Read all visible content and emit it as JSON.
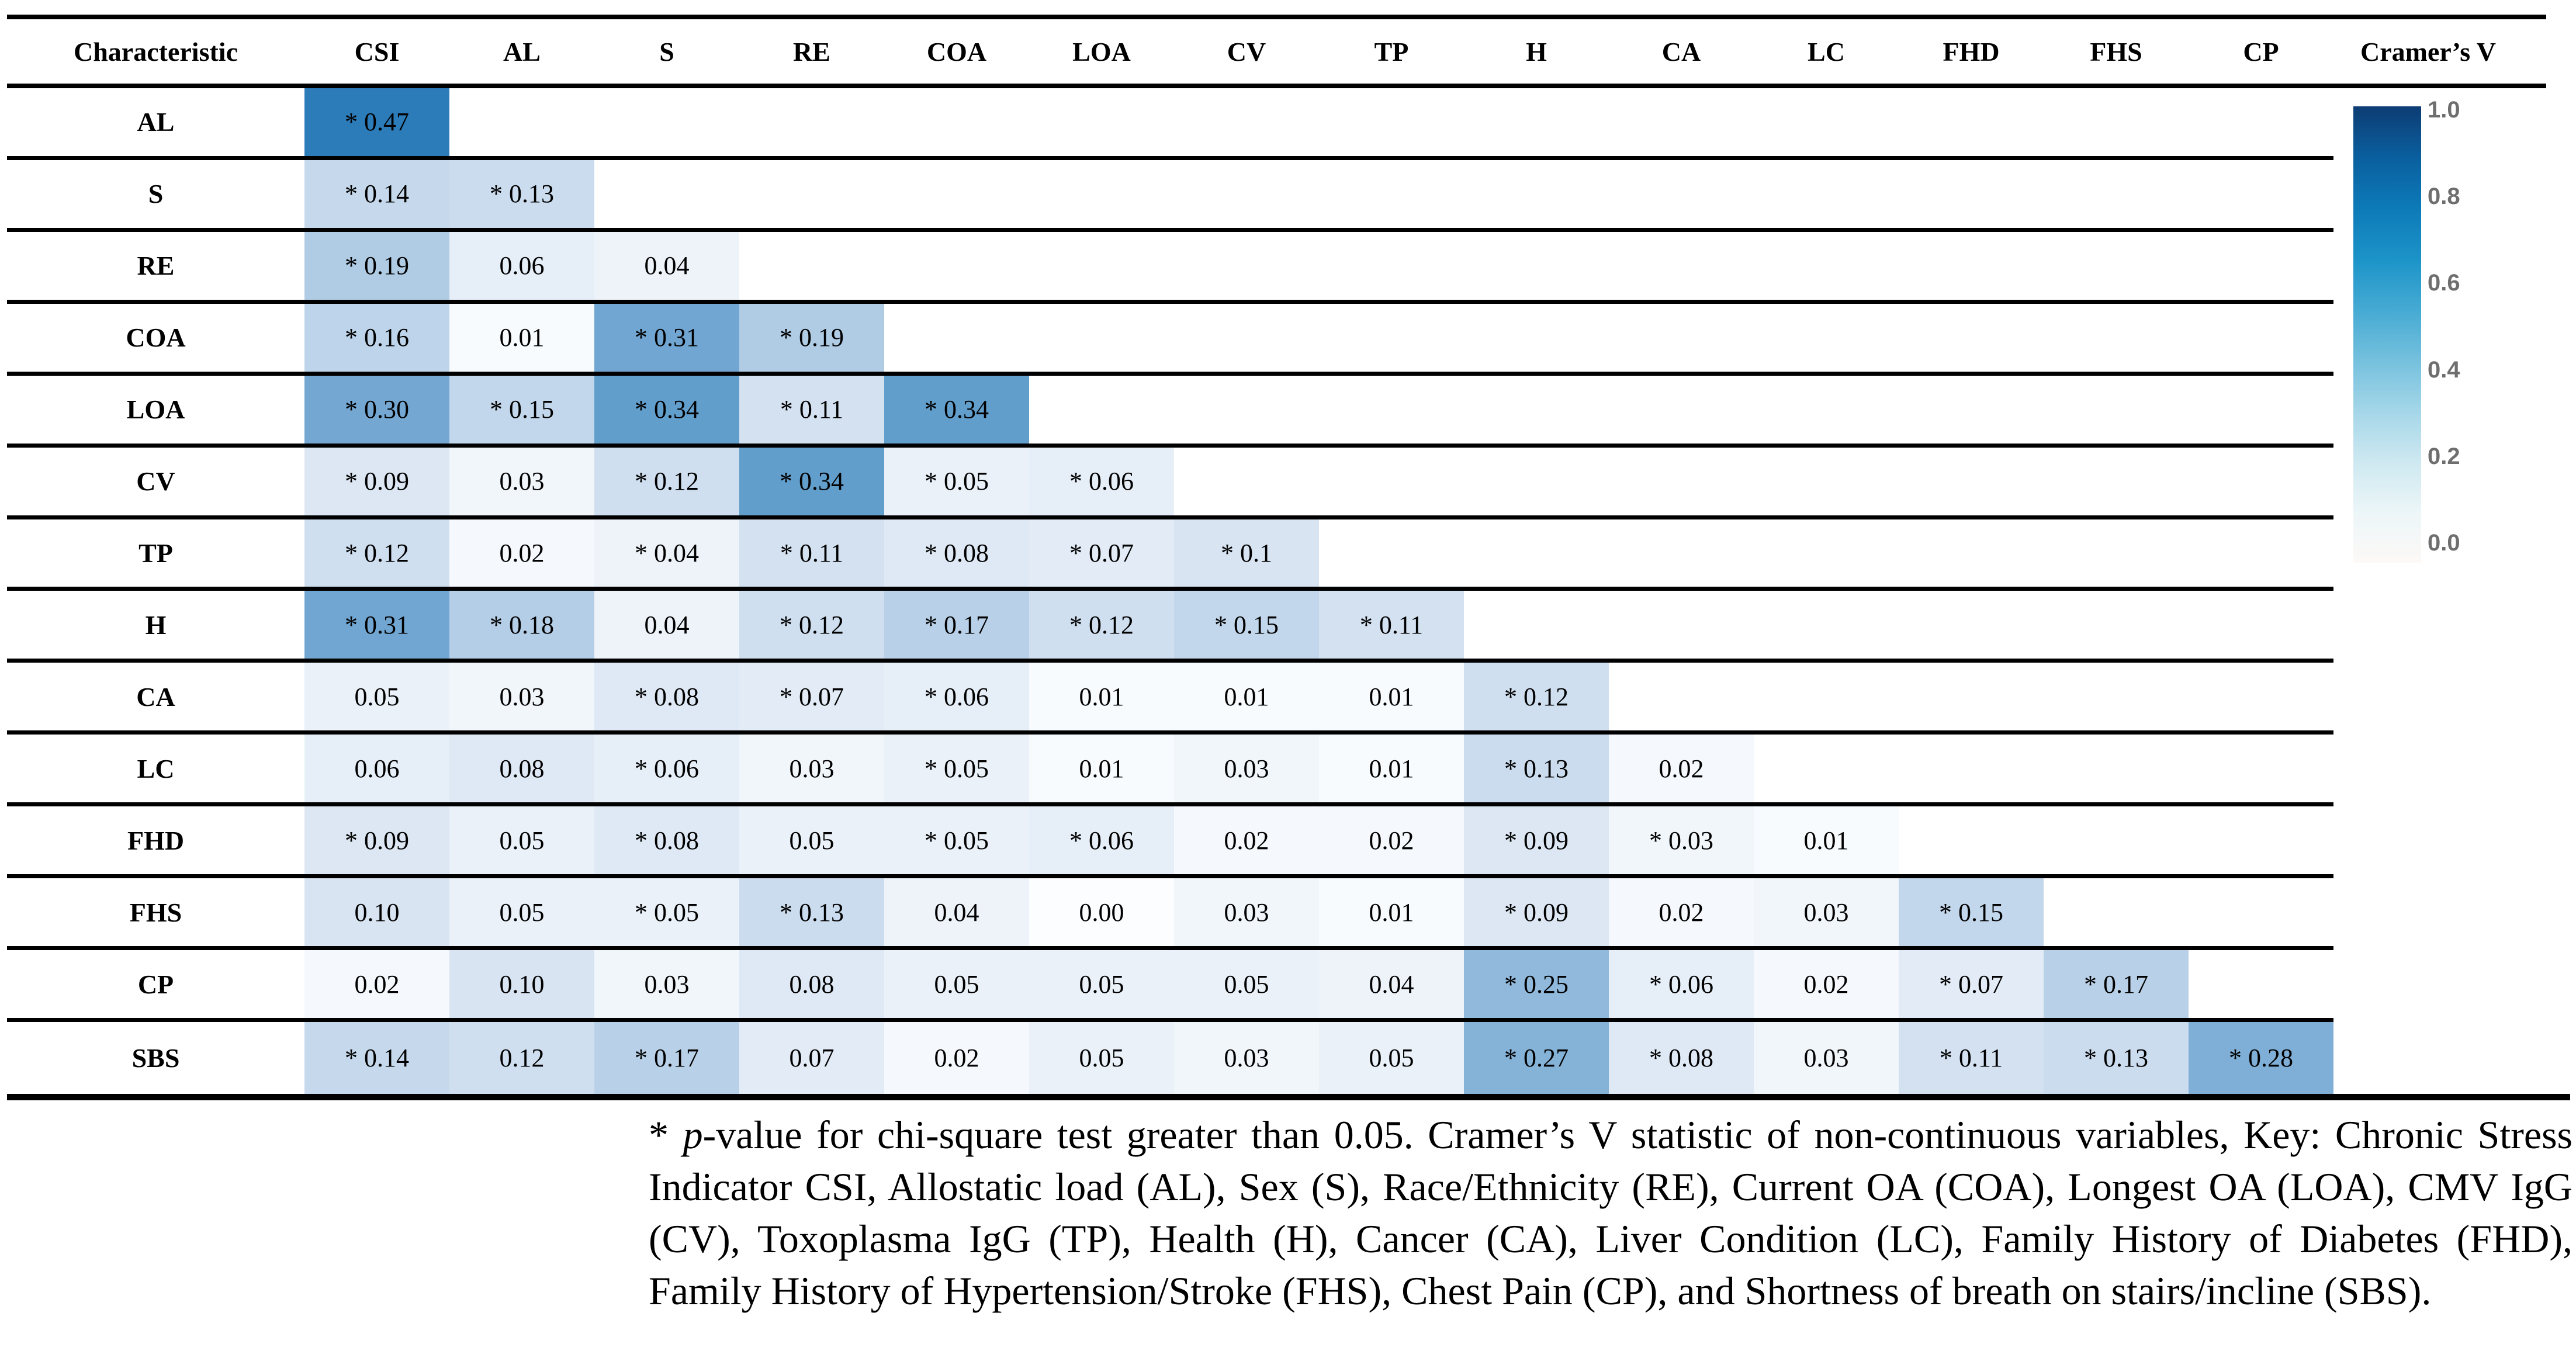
{
  "table": {
    "header_first": "Characteristic",
    "columns": [
      "CSI",
      "AL",
      "S",
      "RE",
      "COA",
      "LOA",
      "CV",
      "TP",
      "H",
      "CA",
      "LC",
      "FHD",
      "FHS",
      "CP"
    ],
    "rows": [
      {
        "label": "AL",
        "values": [
          "* 0.47"
        ]
      },
      {
        "label": "S",
        "values": [
          "* 0.14",
          "* 0.13"
        ]
      },
      {
        "label": "RE",
        "values": [
          "* 0.19",
          "0.06",
          "0.04"
        ]
      },
      {
        "label": "COA",
        "values": [
          "* 0.16",
          "0.01",
          "* 0.31",
          "* 0.19"
        ]
      },
      {
        "label": "LOA",
        "values": [
          "* 0.30",
          "* 0.15",
          "* 0.34",
          "* 0.11",
          "* 0.34"
        ]
      },
      {
        "label": "CV",
        "values": [
          "* 0.09",
          "0.03",
          "* 0.12",
          "* 0.34",
          "* 0.05",
          "* 0.06"
        ]
      },
      {
        "label": "TP",
        "values": [
          "* 0.12",
          "0.02",
          "* 0.04",
          "* 0.11",
          "* 0.08",
          "* 0.07",
          "* 0.1"
        ]
      },
      {
        "label": "H",
        "values": [
          "* 0.31",
          "* 0.18",
          "0.04",
          "* 0.12",
          "* 0.17",
          "* 0.12",
          "* 0.15",
          "* 0.11"
        ]
      },
      {
        "label": "CA",
        "values": [
          "0.05",
          "0.03",
          "* 0.08",
          "* 0.07",
          "* 0.06",
          "0.01",
          "0.01",
          "0.01",
          "* 0.12"
        ]
      },
      {
        "label": "LC",
        "values": [
          "0.06",
          "0.08",
          "* 0.06",
          "0.03",
          "* 0.05",
          "0.01",
          "0.03",
          "0.01",
          "* 0.13",
          "0.02"
        ]
      },
      {
        "label": "FHD",
        "values": [
          "* 0.09",
          "0.05",
          "* 0.08",
          "0.05",
          "* 0.05",
          "* 0.06",
          "0.02",
          "0.02",
          "* 0.09",
          "* 0.03",
          "0.01"
        ]
      },
      {
        "label": "FHS",
        "values": [
          "0.10",
          "0.05",
          "* 0.05",
          "* 0.13",
          "0.04",
          "0.00",
          "0.03",
          "0.01",
          "* 0.09",
          "0.02",
          "0.03",
          "* 0.15"
        ]
      },
      {
        "label": "CP",
        "values": [
          "0.02",
          "0.10",
          "0.03",
          "0.08",
          "0.05",
          "0.05",
          "0.05",
          "0.04",
          "* 0.25",
          "* 0.06",
          "0.02",
          "* 0.07",
          "* 0.17"
        ]
      },
      {
        "label": "SBS",
        "values": [
          "* 0.14",
          "0.12",
          "* 0.17",
          "0.07",
          "0.02",
          "0.05",
          "0.03",
          "0.05",
          "* 0.27",
          "* 0.08",
          "0.03",
          "* 0.11",
          "* 0.13",
          "* 0.28"
        ]
      }
    ]
  },
  "legend": {
    "title": "Cramer’s V",
    "ticks": [
      "1.0",
      "0.8",
      "0.6",
      "0.4",
      "0.2",
      "0.0"
    ],
    "tick_color": "#6e6e6e",
    "gradient_top_to_bottom": [
      "#0d3c74",
      "#0a5f9e",
      "#0d7ab8",
      "#1b93c8",
      "#45aad3",
      "#74c0dd",
      "#a4d6e8",
      "#cde8f1",
      "#ecf6f8",
      "#fdf9f7"
    ]
  },
  "heatmap": {
    "scale_stops": {
      "values": [
        0,
        0.1,
        0.2,
        0.3,
        0.4,
        0.5
      ],
      "colors": [
        "#fcfdff",
        "#d8e4f2",
        "#abc9e4",
        "#74a8d2",
        "#4890c4",
        "#2273b5"
      ]
    }
  },
  "caption": {
    "star": "* ",
    "p": "p",
    "rest": "-value for chi-square test greater than 0.05. Cramer’s V statistic of non-continuous variables, Key: Chronic Stress Indicator CSI, Allostatic load (AL), Sex (S), Race/Ethnicity (RE), Current OA (COA), Longest OA (LOA), CMV IgG (CV), Toxoplasma IgG (TP), Health (H), Cancer (CA), Liver Condition (LC), Family History of Diabetes (FHD), Family History of Hypertension/Stroke (FHS), Chest Pain (CP), and Shortness of breath on stairs/incline (SBS)."
  },
  "chart_data": {
    "type": "heatmap",
    "title": "Cramer’s V statistic of non-continuous variables",
    "legend_label": "Cramer’s V",
    "colorbar_range": [
      0.0,
      1.0
    ],
    "colorbar_ticks": [
      1.0,
      0.8,
      0.6,
      0.4,
      0.2,
      0.0
    ],
    "columns": [
      "CSI",
      "AL",
      "S",
      "RE",
      "COA",
      "LOA",
      "CV",
      "TP",
      "H",
      "CA",
      "LC",
      "FHD",
      "FHS",
      "CP"
    ],
    "rows": [
      "AL",
      "S",
      "RE",
      "COA",
      "LOA",
      "CV",
      "TP",
      "H",
      "CA",
      "LC",
      "FHD",
      "FHS",
      "CP",
      "SBS"
    ],
    "values": [
      [
        0.47
      ],
      [
        0.14,
        0.13
      ],
      [
        0.19,
        0.06,
        0.04
      ],
      [
        0.16,
        0.01,
        0.31,
        0.19
      ],
      [
        0.3,
        0.15,
        0.34,
        0.11,
        0.34
      ],
      [
        0.09,
        0.03,
        0.12,
        0.34,
        0.05,
        0.06
      ],
      [
        0.12,
        0.02,
        0.04,
        0.11,
        0.08,
        0.07,
        0.1
      ],
      [
        0.31,
        0.18,
        0.04,
        0.12,
        0.17,
        0.12,
        0.15,
        0.11
      ],
      [
        0.05,
        0.03,
        0.08,
        0.07,
        0.06,
        0.01,
        0.01,
        0.01,
        0.12
      ],
      [
        0.06,
        0.08,
        0.06,
        0.03,
        0.05,
        0.01,
        0.03,
        0.01,
        0.13,
        0.02
      ],
      [
        0.09,
        0.05,
        0.08,
        0.05,
        0.05,
        0.06,
        0.02,
        0.02,
        0.09,
        0.03,
        0.01
      ],
      [
        0.1,
        0.05,
        0.05,
        0.13,
        0.04,
        0.0,
        0.03,
        0.01,
        0.09,
        0.02,
        0.03,
        0.15
      ],
      [
        0.02,
        0.1,
        0.03,
        0.08,
        0.05,
        0.05,
        0.05,
        0.04,
        0.25,
        0.06,
        0.02,
        0.07,
        0.17
      ],
      [
        0.14,
        0.12,
        0.17,
        0.07,
        0.02,
        0.05,
        0.03,
        0.05,
        0.27,
        0.08,
        0.03,
        0.11,
        0.13,
        0.28
      ]
    ],
    "starred": [
      [
        true
      ],
      [
        true,
        true
      ],
      [
        true,
        false,
        false
      ],
      [
        true,
        false,
        true,
        true
      ],
      [
        true,
        true,
        true,
        true,
        true
      ],
      [
        true,
        false,
        true,
        true,
        true,
        true
      ],
      [
        true,
        false,
        true,
        true,
        true,
        true,
        true
      ],
      [
        true,
        true,
        false,
        true,
        true,
        true,
        true,
        true
      ],
      [
        false,
        false,
        true,
        true,
        true,
        false,
        false,
        false,
        true
      ],
      [
        false,
        false,
        true,
        false,
        true,
        false,
        false,
        false,
        true,
        false
      ],
      [
        true,
        false,
        true,
        false,
        true,
        true,
        false,
        false,
        true,
        true,
        false
      ],
      [
        false,
        false,
        true,
        true,
        false,
        false,
        false,
        false,
        true,
        false,
        false,
        true
      ],
      [
        false,
        false,
        false,
        false,
        false,
        false,
        false,
        false,
        true,
        true,
        false,
        true,
        true
      ],
      [
        true,
        false,
        true,
        false,
        false,
        false,
        false,
        false,
        true,
        true,
        false,
        true,
        true,
        true
      ]
    ],
    "star_meaning": "p-value for chi-square test greater than 0.05"
  }
}
